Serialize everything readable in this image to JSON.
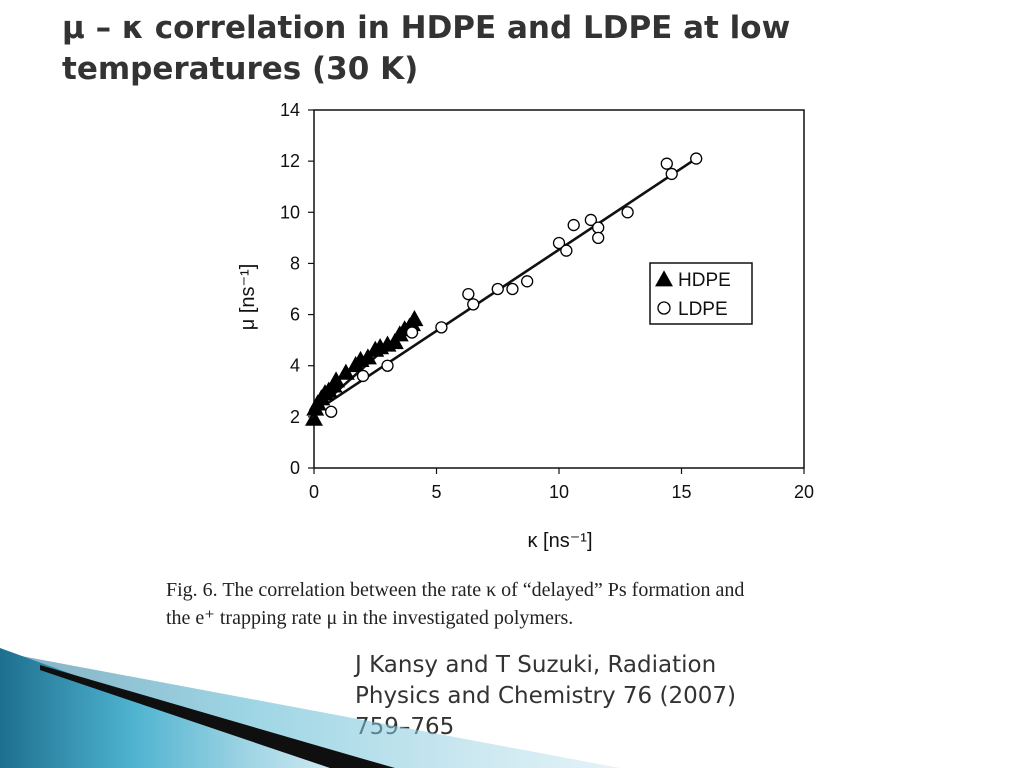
{
  "slide": {
    "title": "μ – κ correlation in HDPE and LDPE at low temperatures (30 K)",
    "caption_line1": "Fig. 6.  The correlation between the rate κ of “delayed” Ps formation and",
    "caption_line2": "the e⁺ trapping rate μ in the investigated polymers.",
    "citation_line1": "J Kansy and T Suzuki, Radiation",
    "citation_line2": "Physics and Chemistry 76 (2007)",
    "citation_line3": "759–765"
  },
  "chart_data": {
    "type": "scatter",
    "xlabel": "κ [ns⁻¹]",
    "ylabel": "μ [ns⁻¹]",
    "xlim": [
      0,
      20
    ],
    "ylim": [
      0,
      14
    ],
    "xticks": [
      0,
      5,
      10,
      15,
      20
    ],
    "yticks": [
      0,
      2,
      4,
      6,
      8,
      10,
      12,
      14
    ],
    "legend_position": "right-middle",
    "series": [
      {
        "name": "HDPE",
        "marker": "filled-triangle",
        "color": "#000000",
        "points": [
          [
            0.0,
            1.9
          ],
          [
            0.05,
            2.3
          ],
          [
            0.15,
            2.5
          ],
          [
            0.3,
            2.7
          ],
          [
            0.45,
            2.9
          ],
          [
            0.6,
            3.0
          ],
          [
            0.8,
            3.2
          ],
          [
            0.9,
            3.4
          ],
          [
            1.3,
            3.7
          ],
          [
            1.7,
            4.0
          ],
          [
            1.9,
            4.2
          ],
          [
            2.2,
            4.3
          ],
          [
            2.5,
            4.6
          ],
          [
            2.7,
            4.7
          ],
          [
            3.0,
            4.8
          ],
          [
            3.3,
            4.9
          ],
          [
            3.5,
            5.2
          ],
          [
            3.7,
            5.4
          ],
          [
            3.9,
            5.5
          ],
          [
            4.0,
            5.6
          ],
          [
            4.1,
            5.8
          ]
        ]
      },
      {
        "name": "LDPE",
        "marker": "open-circle",
        "color": "#000000",
        "points": [
          [
            0.7,
            2.2
          ],
          [
            2.0,
            3.6
          ],
          [
            3.0,
            4.0
          ],
          [
            4.0,
            5.3
          ],
          [
            5.2,
            5.5
          ],
          [
            6.3,
            6.8
          ],
          [
            6.5,
            6.4
          ],
          [
            7.5,
            7.0
          ],
          [
            8.1,
            7.0
          ],
          [
            8.7,
            7.3
          ],
          [
            10.0,
            8.8
          ],
          [
            10.3,
            8.5
          ],
          [
            10.6,
            9.5
          ],
          [
            11.3,
            9.7
          ],
          [
            11.6,
            9.4
          ],
          [
            11.6,
            9.0
          ],
          [
            12.8,
            10.0
          ],
          [
            14.4,
            11.9
          ],
          [
            14.6,
            11.5
          ],
          [
            15.6,
            12.1
          ]
        ]
      }
    ],
    "fit_lines": [
      {
        "x": [
          0.0,
          4.1
        ],
        "y": [
          2.2,
          5.7
        ]
      },
      {
        "x": [
          0.5,
          15.6
        ],
        "y": [
          2.5,
          12.1
        ]
      }
    ],
    "legend": [
      "HDPE",
      "LDPE"
    ]
  },
  "decor": {
    "band_colors": [
      "#1d6f8f",
      "#4eb3cf",
      "#9fd4e4",
      "#cfe9f2"
    ],
    "dark_color": "#0f0f0f"
  }
}
